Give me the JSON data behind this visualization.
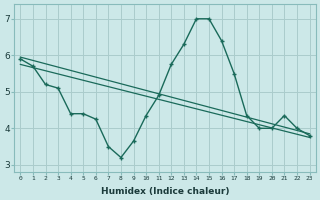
{
  "xlabel": "Humidex (Indice chaleur)",
  "ylabel": "",
  "bg_color": "#cce8e8",
  "grid_color": "#aacccc",
  "line_color": "#1a6a5a",
  "x_data": [
    0,
    1,
    2,
    3,
    4,
    5,
    6,
    7,
    8,
    9,
    10,
    11,
    12,
    13,
    14,
    15,
    16,
    17,
    18,
    19,
    20,
    21,
    22,
    23
  ],
  "y_main": [
    5.9,
    5.7,
    5.2,
    5.1,
    4.4,
    4.4,
    4.25,
    3.5,
    3.2,
    3.65,
    4.35,
    4.9,
    5.75,
    6.3,
    7.0,
    7.0,
    6.4,
    5.5,
    4.35,
    4.0,
    4.0,
    4.35,
    4.0,
    3.8
  ],
  "y_trend1_start": 5.95,
  "y_trend1_end": 3.85,
  "y_trend2_start": 5.75,
  "y_trend2_end": 3.75,
  "xlim": [
    -0.5,
    23.5
  ],
  "ylim": [
    2.8,
    7.4
  ],
  "yticks": [
    3,
    4,
    5,
    6,
    7
  ],
  "xticks": [
    0,
    1,
    2,
    3,
    4,
    5,
    6,
    7,
    8,
    9,
    10,
    11,
    12,
    13,
    14,
    15,
    16,
    17,
    18,
    19,
    20,
    21,
    22,
    23
  ]
}
